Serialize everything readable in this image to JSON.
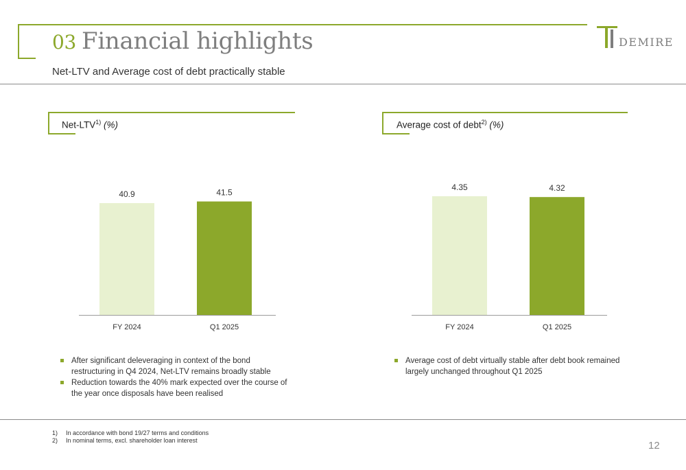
{
  "header": {
    "section_number": "03",
    "title": "Financial highlights",
    "subtitle": "Net-LTV and Average cost of debt practically stable"
  },
  "logo": {
    "text": "DEMIRE"
  },
  "panels": [
    {
      "label": "Net-LTV",
      "footnote_ref": "1)",
      "unit": "(%)"
    },
    {
      "label": "Average cost of debt",
      "footnote_ref": "2)",
      "unit": "(%)"
    }
  ],
  "chart_data": [
    {
      "type": "bar",
      "categories": [
        "FY 2024",
        "Q1 2025"
      ],
      "values": [
        40.9,
        41.5
      ],
      "value_labels": [
        "40.9",
        "41.5"
      ],
      "colors": [
        "#e8f1d0",
        "#8ca82b"
      ],
      "title": "Net-LTV",
      "xlabel": "",
      "ylabel": ""
    },
    {
      "type": "bar",
      "categories": [
        "FY 2024",
        "Q1 2025"
      ],
      "values": [
        4.35,
        4.32
      ],
      "value_labels": [
        "4.35",
        "4.32"
      ],
      "colors": [
        "#e8f1d0",
        "#8ca82b"
      ],
      "title": "Average cost of debt",
      "xlabel": "",
      "ylabel": ""
    }
  ],
  "bullets_left": [
    "After significant deleveraging in context of the bond restructuring in Q4 2024, Net-LTV remains broadly stable",
    "Reduction towards the 40% mark expected over the course of the year once disposals have been realised"
  ],
  "bullets_right": [
    "Average cost of debt virtually stable after debt book remained largely unchanged throughout Q1 2025"
  ],
  "footnotes": [
    {
      "key": "1)",
      "text": "In accordance with bond 19/27 terms and conditions"
    },
    {
      "key": "2)",
      "text": "In nominal terms, excl. shareholder loan interest"
    }
  ],
  "page_number": "12",
  "colors": {
    "accent": "#8ca82b",
    "light_bar": "#e8f1d0",
    "title_grey": "#7e7e7e"
  }
}
